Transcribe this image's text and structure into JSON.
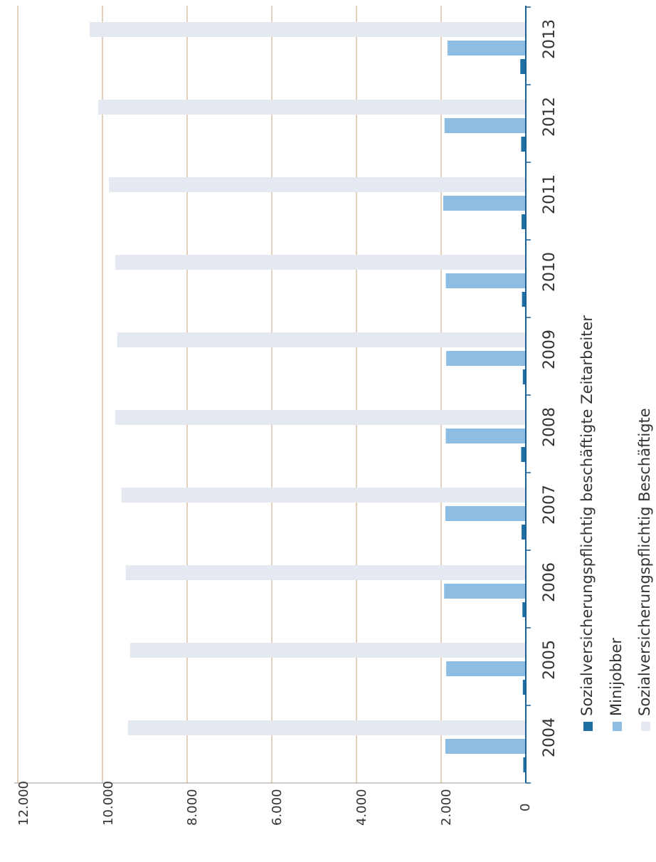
{
  "chart_data": {
    "type": "bar",
    "orientation": "horizontal",
    "rotated_page": true,
    "categories": [
      "2004",
      "2005",
      "2006",
      "2007",
      "2008",
      "2009",
      "2010",
      "2011",
      "2012",
      "2013"
    ],
    "series": [
      {
        "name": "Sozialversicherungspflichtig beschäftigte Zeitarbeiter",
        "color": "#1f6fa3",
        "values": [
          60,
          70,
          80,
          100,
          110,
          70,
          90,
          100,
          110,
          130
        ]
      },
      {
        "name": "Minijobber",
        "color": "#8dbde3",
        "values": [
          1900,
          1880,
          1930,
          1900,
          1890,
          1880,
          1890,
          1950,
          1920,
          1850
        ]
      },
      {
        "name": "Sozialversicherungspflichtig Beschäftigte",
        "color": "#e4e8f0",
        "values": [
          9400,
          9350,
          9450,
          9550,
          9700,
          9650,
          9700,
          9850,
          10100,
          10300
        ]
      }
    ],
    "value_axis": {
      "min": 0,
      "max": 12000,
      "ticks": [
        "12.000",
        "10.000",
        "8.000",
        "6.000",
        "4.000",
        "2.000",
        "0"
      ],
      "tick_values": [
        12000,
        10000,
        8000,
        6000,
        4000,
        2000,
        0
      ]
    },
    "grid": true,
    "grid_color": "#c4a07a",
    "axis_color": "#1b5f95",
    "legend": {
      "placement": "bottom",
      "entries": [
        "Sozialversicherungspflichtig beschäftigte Zeitarbeiter",
        "Minijobber",
        "Sozialversicherungspflichtig Beschäftigte"
      ]
    }
  }
}
